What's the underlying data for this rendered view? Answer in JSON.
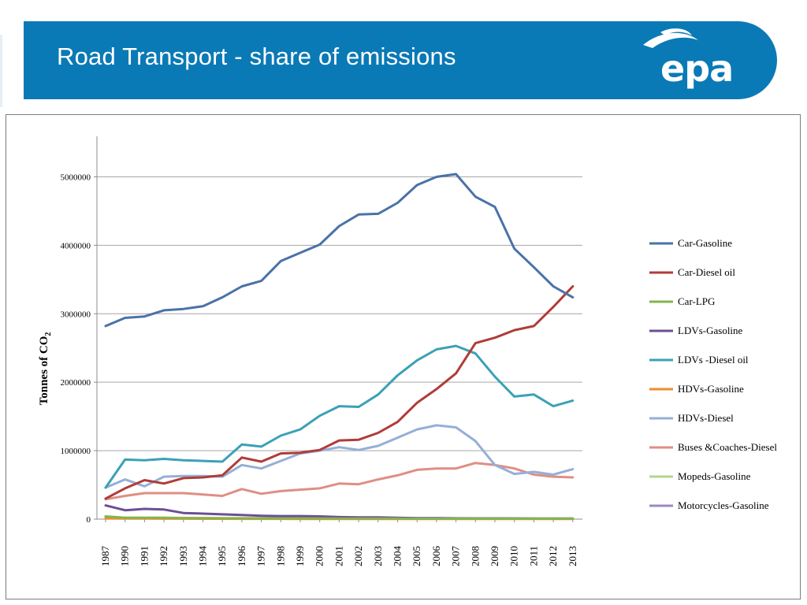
{
  "header": {
    "title": "Road Transport - share of emissions",
    "logo_text": "epa",
    "band_color": "#0a7ab6"
  },
  "chart_data": {
    "type": "line",
    "title": "",
    "xlabel": "",
    "ylabel": "Tonnes of CO2",
    "ylabel_main": "Tonnes of CO",
    "ylabel_sub": "2",
    "ylim": [
      0,
      5500000
    ],
    "yticks": [
      0,
      1000000,
      2000000,
      3000000,
      4000000,
      5000000
    ],
    "ytick_labels": [
      "0",
      "1000000",
      "2000000",
      "3000000",
      "4000000",
      "5000000"
    ],
    "grid": true,
    "legend_position": "right",
    "categories": [
      "1987",
      "1990",
      "1991",
      "1992",
      "1993",
      "1994",
      "1995",
      "1996",
      "1997",
      "1998",
      "1999",
      "2000",
      "2001",
      "2002",
      "2003",
      "2004",
      "2005",
      "2006",
      "2007",
      "2008",
      "2009",
      "2010",
      "2011",
      "2012",
      "2013"
    ],
    "series": [
      {
        "name": "Car-Gasoline",
        "color": "#4a72a8",
        "values": [
          2820000,
          2940000,
          2960000,
          3050000,
          3070000,
          3110000,
          3240000,
          3400000,
          3480000,
          3770000,
          3890000,
          4010000,
          4280000,
          4450000,
          4460000,
          4620000,
          4880000,
          5000000,
          5040000,
          4710000,
          4560000,
          3950000,
          3680000,
          3400000,
          3240000
        ]
      },
      {
        "name": "Car-Diesel oil",
        "color": "#b03c38",
        "values": [
          300000,
          450000,
          570000,
          520000,
          600000,
          610000,
          640000,
          900000,
          840000,
          960000,
          970000,
          1010000,
          1150000,
          1160000,
          1260000,
          1420000,
          1700000,
          1900000,
          2130000,
          2570000,
          2650000,
          2760000,
          2820000,
          3100000,
          3400000
        ]
      },
      {
        "name": "Car-LPG",
        "color": "#84b44e",
        "values": [
          40000,
          20000,
          20000,
          20000,
          15000,
          15000,
          12000,
          12000,
          10000,
          10000,
          10000,
          10000,
          8000,
          8000,
          8000,
          8000,
          6000,
          6000,
          6000,
          6000,
          6000,
          6000,
          6000,
          6000,
          6000
        ]
      },
      {
        "name": "LDVs-Gasoline",
        "color": "#6b4f95",
        "values": [
          200000,
          130000,
          150000,
          140000,
          90000,
          80000,
          70000,
          60000,
          50000,
          45000,
          45000,
          40000,
          30000,
          25000,
          25000,
          20000,
          15000,
          15000,
          12000,
          10000,
          10000,
          10000,
          8000,
          8000,
          8000
        ]
      },
      {
        "name": "LDVs -Diesel oil",
        "color": "#3ba1b6",
        "values": [
          460000,
          870000,
          860000,
          880000,
          860000,
          850000,
          840000,
          1090000,
          1060000,
          1220000,
          1310000,
          1510000,
          1650000,
          1640000,
          1820000,
          2100000,
          2320000,
          2480000,
          2530000,
          2420000,
          2080000,
          1790000,
          1820000,
          1650000,
          1730000
        ]
      },
      {
        "name": "HDVs-Gasoline",
        "color": "#f08b32",
        "values": [
          10000,
          8000,
          8000,
          7000,
          7000,
          6000,
          6000,
          5000,
          5000,
          5000,
          4000,
          4000,
          4000,
          3000,
          3000,
          3000,
          3000,
          2000,
          2000,
          2000,
          2000,
          2000,
          2000,
          2000,
          2000
        ]
      },
      {
        "name": "HDVs-Diesel",
        "color": "#95afd8",
        "values": [
          460000,
          580000,
          480000,
          620000,
          630000,
          630000,
          620000,
          790000,
          740000,
          850000,
          960000,
          1000000,
          1050000,
          1010000,
          1070000,
          1190000,
          1310000,
          1370000,
          1340000,
          1140000,
          790000,
          660000,
          690000,
          650000,
          730000
        ]
      },
      {
        "name": "Buses &Coaches-Diesel",
        "color": "#e08e84",
        "values": [
          290000,
          340000,
          380000,
          380000,
          380000,
          360000,
          340000,
          440000,
          370000,
          410000,
          430000,
          450000,
          520000,
          510000,
          580000,
          640000,
          720000,
          740000,
          740000,
          820000,
          790000,
          740000,
          650000,
          620000,
          610000
        ]
      },
      {
        "name": "Mopeds-Gasoline",
        "color": "#b6d588",
        "values": [
          25000,
          20000,
          20000,
          18000,
          18000,
          16000,
          15000,
          15000,
          14000,
          14000,
          13000,
          12000,
          12000,
          11000,
          10000,
          10000,
          9000,
          9000,
          9000,
          8000,
          8000,
          7000,
          7000,
          7000,
          7000
        ]
      },
      {
        "name": "Motorcycles-Gasoline",
        "color": "#9b89bd",
        "values": [
          15000,
          12000,
          12000,
          11000,
          11000,
          10000,
          10000,
          10000,
          9000,
          9000,
          9000,
          9000,
          8000,
          8000,
          8000,
          8000,
          7000,
          7000,
          7000,
          7000,
          7000,
          6000,
          6000,
          6000,
          6000
        ]
      }
    ]
  }
}
